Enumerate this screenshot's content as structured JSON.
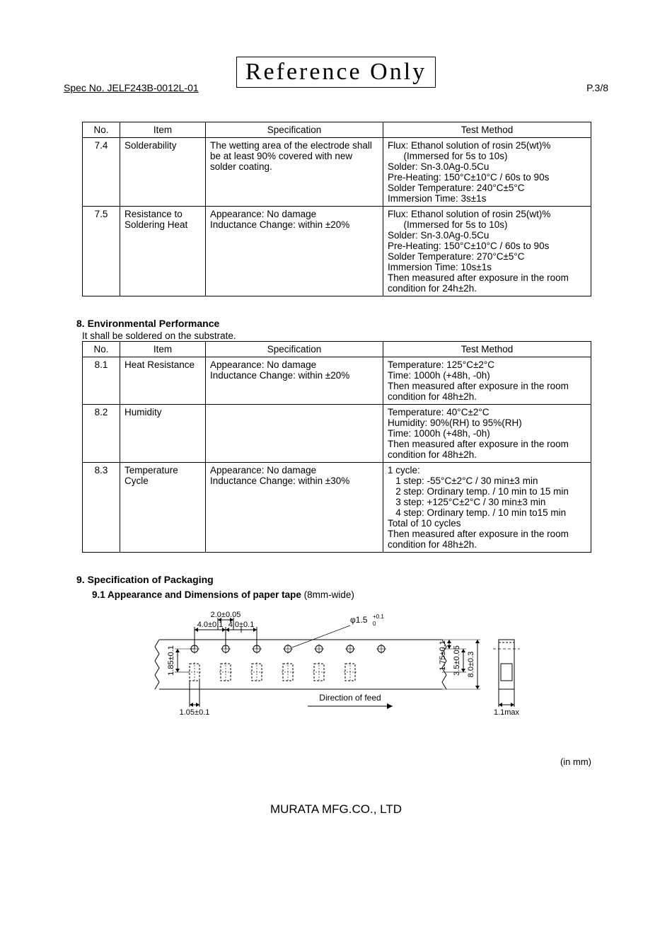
{
  "watermark": "Reference Only",
  "header": {
    "spec_no": "Spec No. JELF243B-0012L-01",
    "page": "P.3/8"
  },
  "table7": {
    "columns": [
      "No.",
      "Item",
      "Specification",
      "Test Method"
    ],
    "rows": [
      {
        "no": "7.4",
        "item": "Solderability",
        "spec": "The wetting area of the electrode shall be at least 90% covered with new solder coating.",
        "method": "Flux: Ethanol solution of rosin 25(wt)%\n      (Immersed for 5s to 10s)\nSolder: Sn-3.0Ag-0.5Cu\nPre-Heating: 150°C±10°C / 60s to 90s\nSolder Temperature: 240°C±5°C\nImmersion Time: 3s±1s"
      },
      {
        "no": "7.5",
        "item": "Resistance to Soldering Heat",
        "spec": "Appearance: No damage\nInductance Change: within ±20%",
        "method": "Flux: Ethanol solution of rosin 25(wt)%\n      (Immersed for 5s to 10s)\nSolder: Sn-3.0Ag-0.5Cu\nPre-Heating: 150°C±10°C / 60s to 90s\nSolder Temperature: 270°C±5°C\nImmersion Time: 10s±1s\nThen measured after exposure in the room condition for 24h±2h."
      }
    ]
  },
  "section8": {
    "heading": "8. Environmental Performance",
    "note": "It shall be soldered on the substrate.",
    "columns": [
      "No.",
      "Item",
      "Specification",
      "Test Method"
    ],
    "rows": [
      {
        "no": "8.1",
        "item": "Heat Resistance",
        "spec": "Appearance: No damage\nInductance Change: within ±20%",
        "method": "Temperature: 125°C±2°C\nTime: 1000h (+48h, -0h)\nThen measured after exposure in the room condition for 48h±2h."
      },
      {
        "no": "8.2",
        "item": "Humidity",
        "spec": "",
        "method": "Temperature: 40°C±2°C\nHumidity: 90%(RH) to 95%(RH)\nTime: 1000h (+48h, -0h)\nThen measured after exposure in the room condition for 48h±2h."
      },
      {
        "no": "8.3",
        "item": "Temperature Cycle",
        "spec": "Appearance: No damage\nInductance Change: within ±30%",
        "method": "1 cycle:\n   1 step: -55°C±2°C / 30 min±3 min\n   2 step: Ordinary temp. / 10 min to 15 min\n   3 step: +125°C±2°C / 30 min±3 min\n   4 step: Ordinary temp. / 10 min to15 min\nTotal of 10 cycles\nThen measured after exposure in the room condition for 48h±2h."
      }
    ]
  },
  "section9": {
    "heading": "9. Specification of Packaging",
    "sub_heading": "9.1 Appearance and Dimensions of paper tape",
    "sub_heading_extra": " (8mm-wide)",
    "unit_note": "(in mm)"
  },
  "diagram": {
    "dims": {
      "top_2_0": "2.0±0.05",
      "top_4_0_a": "4.0±0.1",
      "top_4_0_b": "4.0±0.1",
      "phi": "φ1.5",
      "phi_tol_up": "+0.1",
      "phi_tol_lo": "0",
      "right_1_75": "1.75±0.1",
      "right_3_5": "3.5±0.05",
      "right_8_0": "8.0±0.3",
      "left_1_85": "1.85±0.1",
      "bottom_1_05": "1.05±0.1",
      "bottom_1_1": "1.1max",
      "feed": "Direction of feed"
    },
    "layout": {
      "sprocket_count": 7,
      "pocket_count": 6
    },
    "colors": {
      "stroke": "#000000",
      "bg": "#ffffff"
    }
  },
  "footer": "MURATA MFG.CO., LTD"
}
